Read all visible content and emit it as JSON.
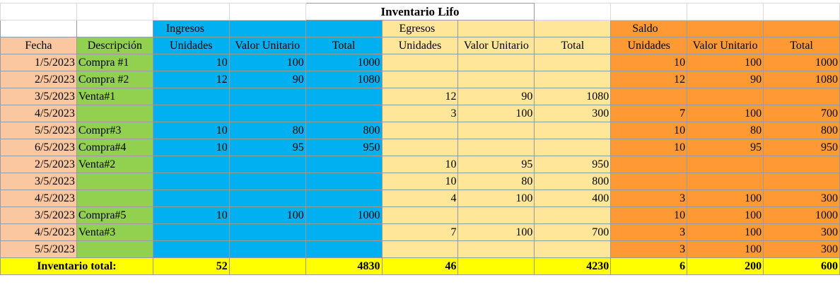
{
  "title": "Inventario Lifo",
  "groups": {
    "ingresos": "Ingresos",
    "egresos": "Egresos",
    "saldo": "Saldo"
  },
  "headers": {
    "fecha": "Fecha",
    "descripcion": "Descripción",
    "unidades": "Unidades",
    "valor_unitario": "Valor Unitario",
    "total": "Total"
  },
  "colors": {
    "fecha": "#fbc7a0",
    "descripcion": "#92d050",
    "ingresos": "#00b0f0",
    "egresos": "#ffe699",
    "saldo": "#ff9933",
    "totales": "#ffff00"
  },
  "rows": [
    [
      "1/5/2023",
      "Compra #1",
      "10",
      "100",
      "1000",
      "",
      "",
      "",
      "10",
      "100",
      "1000"
    ],
    [
      "2/5/2023",
      "Compra #2",
      "12",
      "90",
      "1080",
      "",
      "",
      "",
      "12",
      "90",
      "1080"
    ],
    [
      "3/5/2023",
      "Venta#1",
      "",
      "",
      "",
      "12",
      "90",
      "1080",
      "",
      "",
      ""
    ],
    [
      "4/5/2023",
      "",
      "",
      "",
      "",
      "3",
      "100",
      "300",
      "7",
      "100",
      "700"
    ],
    [
      "5/5/2023",
      "Compr#3",
      "10",
      "80",
      "800",
      "",
      "",
      "",
      "10",
      "80",
      "800"
    ],
    [
      "6/5/2023",
      "Compra#4",
      "10",
      "95",
      "950",
      "",
      "",
      "",
      "10",
      "95",
      "950"
    ],
    [
      "2/5/2023",
      "Venta#2",
      "",
      "",
      "",
      "10",
      "95",
      "950",
      "",
      "",
      ""
    ],
    [
      "3/5/2023",
      "",
      "",
      "",
      "",
      "10",
      "80",
      "800",
      "",
      "",
      ""
    ],
    [
      "4/5/2023",
      "",
      "",
      "",
      "",
      "4",
      "100",
      "400",
      "3",
      "100",
      "300"
    ],
    [
      "3/5/2023",
      "Compra#5",
      "10",
      "100",
      "1000",
      "",
      "",
      "",
      "10",
      "100",
      "1000"
    ],
    [
      "4/5/2023",
      "Venta#3",
      "",
      "",
      "",
      "7",
      "100",
      "700",
      "3",
      "100",
      "300"
    ],
    [
      "5/5/2023",
      "",
      "",
      "",
      "",
      "",
      "",
      "",
      "3",
      "100",
      "300"
    ]
  ],
  "totals": {
    "label": "Inventario total:",
    "ing_unidades": "52",
    "ing_valor": "",
    "ing_total": "4830",
    "egr_unidades": "46",
    "egr_valor": "",
    "egr_total": "4230",
    "sal_unidades": "6",
    "sal_valor": "200",
    "sal_total": "600"
  }
}
